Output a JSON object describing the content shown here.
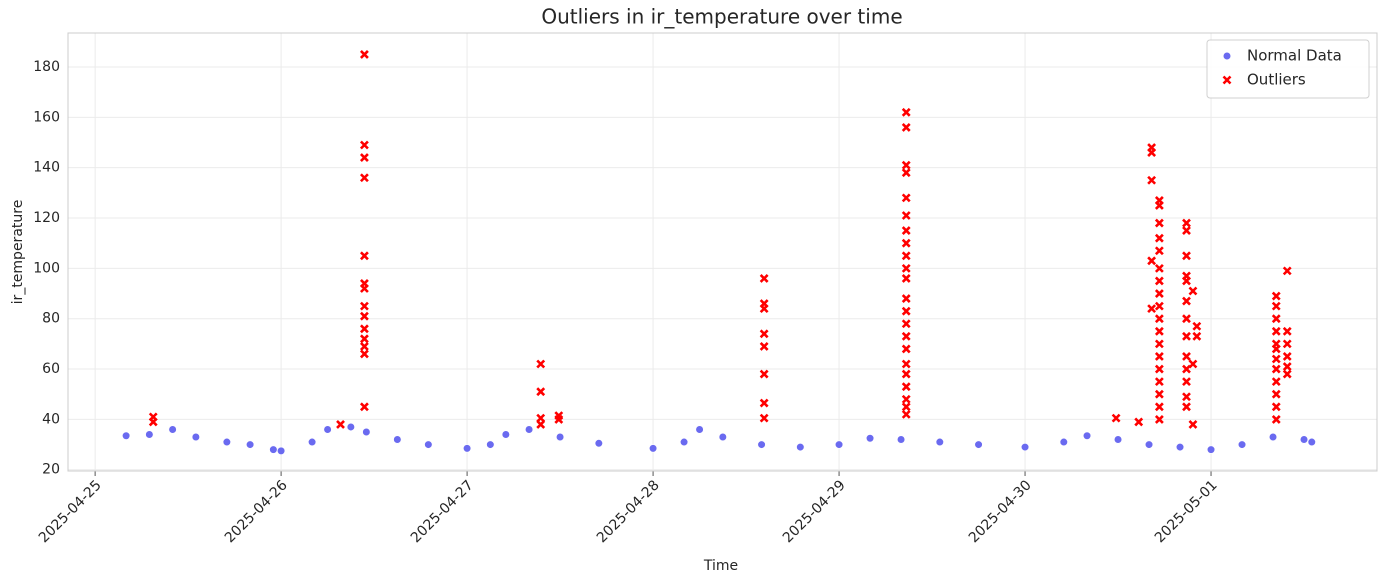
{
  "chart_data": {
    "type": "scatter",
    "title": "Outliers in ir_temperature over time",
    "xlabel": "Time",
    "ylabel": "ir_temperature",
    "xlim": [
      "2025-04-24T20:30",
      "2025-05-01T21:25"
    ],
    "xticks": [
      "2025-04-25",
      "2025-04-26",
      "2025-04-27",
      "2025-04-28",
      "2025-04-29",
      "2025-04-30",
      "2025-05-01"
    ],
    "ylim": [
      19.5,
      193.5
    ],
    "yticks": [
      20,
      40,
      60,
      80,
      100,
      120,
      140,
      160,
      180
    ],
    "grid": true,
    "legend": "upper right",
    "series": [
      {
        "name": "Normal Data",
        "color": "#6a6af0",
        "marker": "o",
        "x": [
          "2025-04-25T04:00",
          "2025-04-25T07:00",
          "2025-04-25T10:00",
          "2025-04-25T13:00",
          "2025-04-25T17:00",
          "2025-04-25T20:00",
          "2025-04-25T23:00",
          "2025-04-26T00:00",
          "2025-04-26T04:00",
          "2025-04-26T06:00",
          "2025-04-26T09:00",
          "2025-04-26T11:00",
          "2025-04-26T15:00",
          "2025-04-26T19:00",
          "2025-04-27T00:00",
          "2025-04-27T03:00",
          "2025-04-27T05:00",
          "2025-04-27T08:00",
          "2025-04-27T12:00",
          "2025-04-27T17:00",
          "2025-04-28T00:00",
          "2025-04-28T04:00",
          "2025-04-28T06:00",
          "2025-04-28T09:00",
          "2025-04-28T14:00",
          "2025-04-28T19:00",
          "2025-04-29T00:00",
          "2025-04-29T04:00",
          "2025-04-29T08:00",
          "2025-04-29T13:00",
          "2025-04-29T18:00",
          "2025-04-30T00:00",
          "2025-04-30T05:00",
          "2025-04-30T08:00",
          "2025-04-30T12:00",
          "2025-04-30T16:00",
          "2025-04-30T20:00",
          "2025-05-01T00:00",
          "2025-05-01T04:00",
          "2025-05-01T08:00",
          "2025-05-01T12:00",
          "2025-05-01T13:00"
        ],
        "values": [
          33.5,
          34,
          36,
          33,
          31,
          30,
          28,
          27.5,
          31,
          36,
          37,
          35,
          32,
          30,
          28.5,
          30,
          34,
          36,
          33,
          30.5,
          28.5,
          31,
          36,
          33,
          30,
          29,
          30,
          32.5,
          32,
          31,
          30,
          29,
          31,
          33.5,
          32,
          30,
          29,
          28,
          30,
          33,
          32,
          31
        ]
      },
      {
        "name": "Outliers",
        "color": "#ff0000",
        "marker": "x",
        "x": [
          "2025-04-25T07:30",
          "2025-04-25T07:30",
          "2025-04-26T07:40",
          "2025-04-26T10:45",
          "2025-04-26T10:45",
          "2025-04-26T10:45",
          "2025-04-26T10:45",
          "2025-04-26T10:45",
          "2025-04-26T10:45",
          "2025-04-26T10:45",
          "2025-04-26T10:45",
          "2025-04-26T10:45",
          "2025-04-26T10:45",
          "2025-04-26T10:45",
          "2025-04-26T10:45",
          "2025-04-26T10:45",
          "2025-04-26T10:45",
          "2025-04-27T09:30",
          "2025-04-27T09:30",
          "2025-04-27T09:30",
          "2025-04-27T09:30",
          "2025-04-27T11:50",
          "2025-04-27T11:50",
          "2025-04-28T14:20",
          "2025-04-28T14:20",
          "2025-04-28T14:20",
          "2025-04-28T14:20",
          "2025-04-28T14:20",
          "2025-04-28T14:20",
          "2025-04-28T14:20",
          "2025-04-28T14:20",
          "2025-04-29T08:40",
          "2025-04-29T08:40",
          "2025-04-29T08:40",
          "2025-04-29T08:40",
          "2025-04-29T08:40",
          "2025-04-29T08:40",
          "2025-04-29T08:40",
          "2025-04-29T08:40",
          "2025-04-29T08:40",
          "2025-04-29T08:40",
          "2025-04-29T08:40",
          "2025-04-29T08:40",
          "2025-04-29T08:40",
          "2025-04-29T08:40",
          "2025-04-29T08:40",
          "2025-04-29T08:40",
          "2025-04-29T08:40",
          "2025-04-29T08:40",
          "2025-04-29T08:40",
          "2025-04-29T08:40",
          "2025-04-29T08:40",
          "2025-04-29T08:40",
          "2025-04-30T11:45",
          "2025-04-30T14:40",
          "2025-04-30T16:20",
          "2025-04-30T16:20",
          "2025-04-30T16:20",
          "2025-04-30T16:20",
          "2025-04-30T16:20",
          "2025-04-30T17:20",
          "2025-04-30T17:20",
          "2025-04-30T17:20",
          "2025-04-30T17:20",
          "2025-04-30T17:20",
          "2025-04-30T17:20",
          "2025-04-30T17:20",
          "2025-04-30T17:20",
          "2025-04-30T17:20",
          "2025-04-30T17:20",
          "2025-04-30T17:20",
          "2025-04-30T17:20",
          "2025-04-30T17:20",
          "2025-04-30T17:20",
          "2025-04-30T17:20",
          "2025-04-30T17:20",
          "2025-04-30T17:20",
          "2025-04-30T17:20",
          "2025-04-30T20:50",
          "2025-04-30T20:50",
          "2025-04-30T20:50",
          "2025-04-30T20:50",
          "2025-04-30T20:50",
          "2025-04-30T20:50",
          "2025-04-30T20:50",
          "2025-04-30T20:50",
          "2025-04-30T20:50",
          "2025-04-30T20:50",
          "2025-04-30T20:50",
          "2025-04-30T20:50",
          "2025-04-30T20:50",
          "2025-04-30T21:40",
          "2025-04-30T21:40",
          "2025-04-30T21:40",
          "2025-04-30T22:10",
          "2025-04-30T22:10",
          "2025-05-01T08:25",
          "2025-05-01T08:25",
          "2025-05-01T08:25",
          "2025-05-01T08:25",
          "2025-05-01T08:25",
          "2025-05-01T08:25",
          "2025-05-01T08:25",
          "2025-05-01T08:25",
          "2025-05-01T08:25",
          "2025-05-01T08:25",
          "2025-05-01T08:25",
          "2025-05-01T08:25",
          "2025-05-01T09:50",
          "2025-05-01T09:50",
          "2025-05-01T09:50",
          "2025-05-01T09:50",
          "2025-05-01T09:50",
          "2025-05-01T09:50"
        ],
        "values": [
          41,
          39,
          38,
          185,
          149,
          144,
          136,
          105,
          94,
          92,
          85,
          81,
          76,
          72,
          69,
          66,
          45,
          62,
          51,
          40.5,
          38,
          41.5,
          40,
          96,
          86,
          84,
          74,
          69,
          58,
          46.5,
          40.5,
          162,
          156,
          141,
          138,
          128,
          121,
          115,
          110,
          105,
          100,
          96,
          88,
          83,
          78,
          73,
          68,
          62,
          58,
          53,
          48,
          45,
          42,
          40.5,
          39,
          148,
          146,
          135,
          103,
          84,
          127,
          125,
          118,
          112,
          107,
          100,
          95,
          90,
          85,
          80,
          75,
          70,
          65,
          60,
          55,
          50,
          45,
          40,
          118,
          115,
          105,
          97,
          95,
          87,
          80,
          73,
          65,
          60,
          55,
          49,
          45,
          91,
          62,
          38,
          77,
          73,
          89,
          85,
          80,
          75,
          70,
          68,
          64,
          60,
          55,
          50,
          45,
          40,
          99,
          75,
          70,
          65,
          61,
          58
        ]
      }
    ]
  }
}
